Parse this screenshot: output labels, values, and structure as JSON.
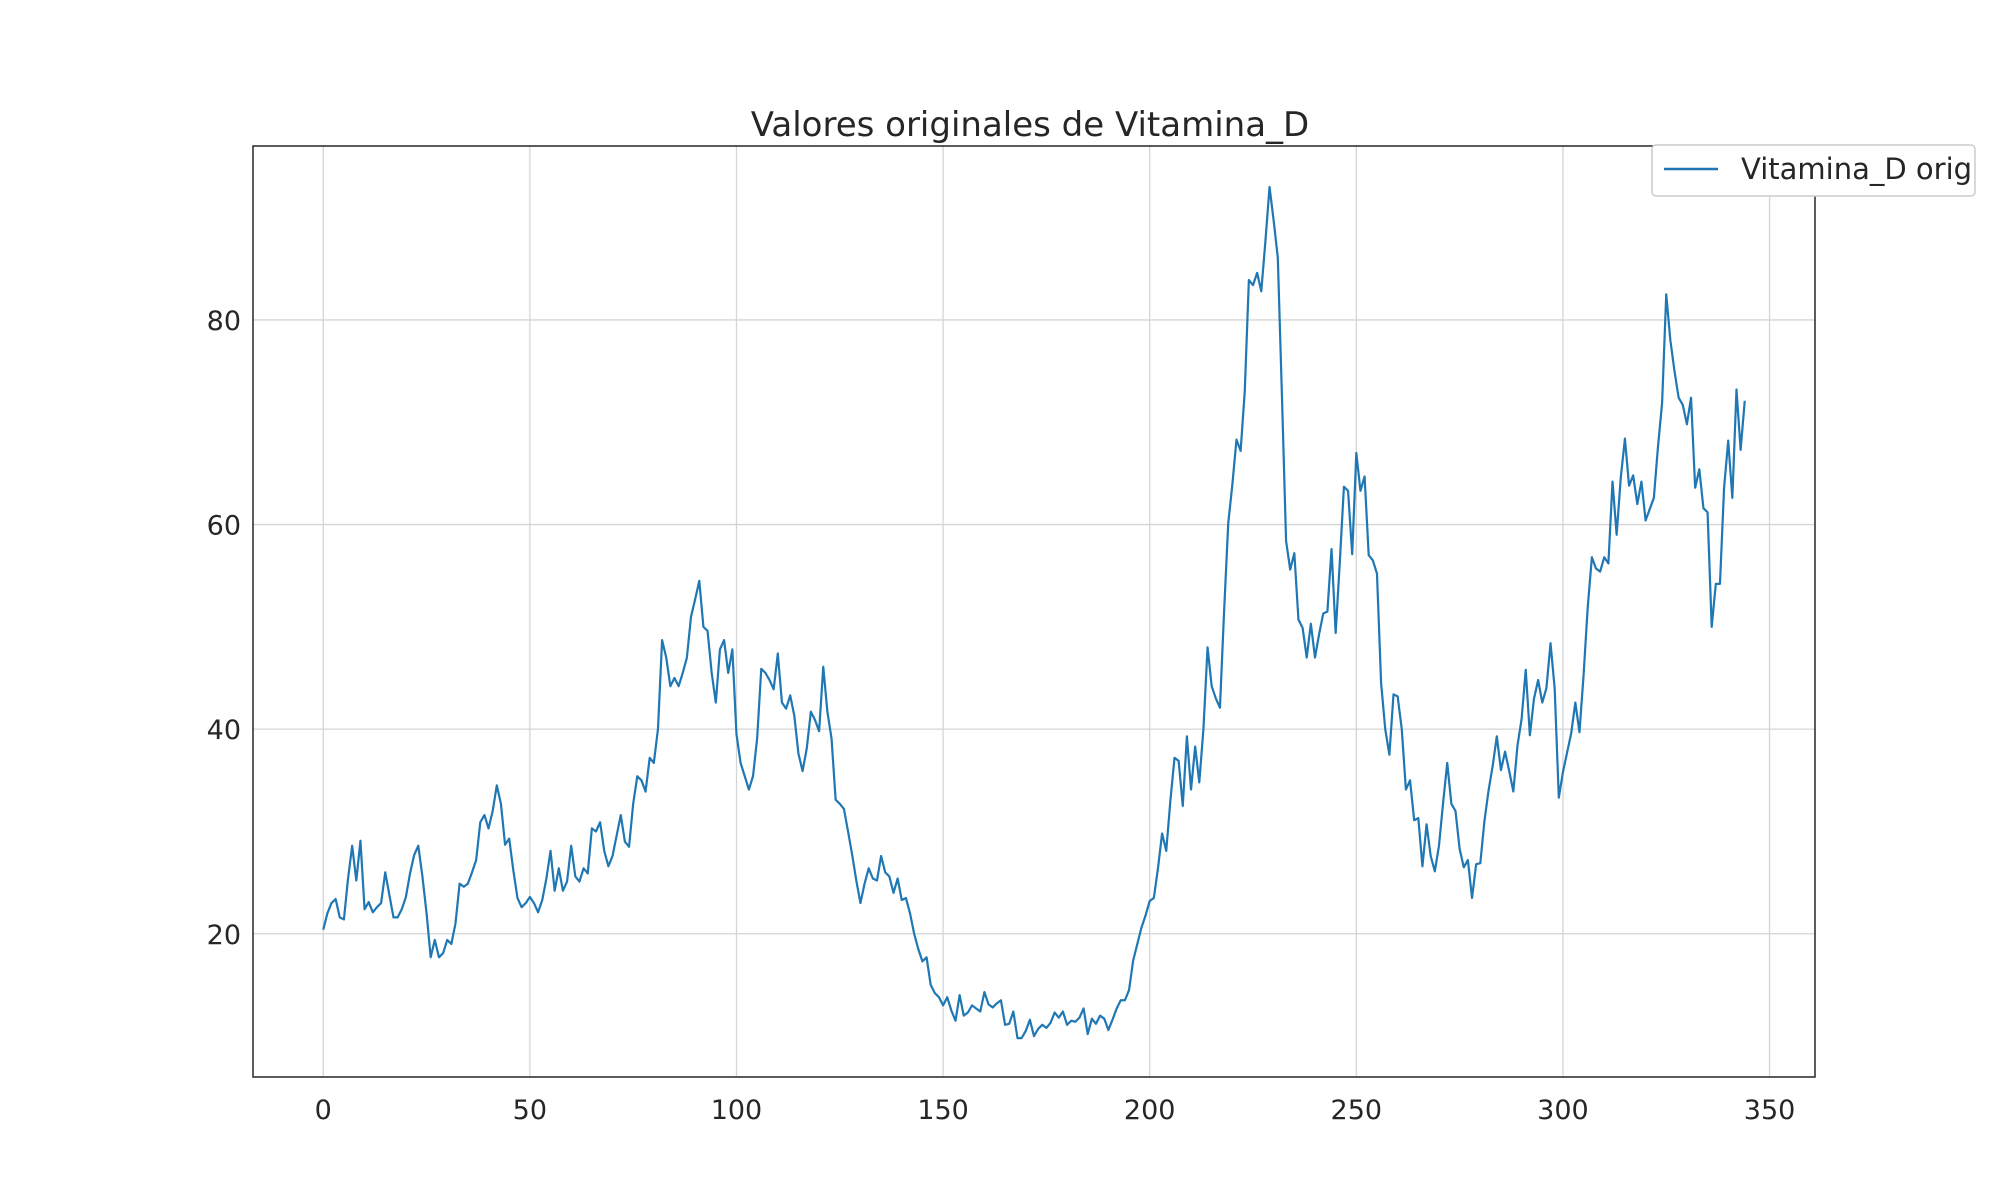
{
  "chart_data": {
    "type": "line",
    "title": "Valores originales de Vitamina_D",
    "xlabel": "",
    "ylabel": "",
    "xlim": [
      -17,
      361
    ],
    "ylim": [
      6,
      97
    ],
    "x_ticks": [
      0,
      50,
      100,
      150,
      200,
      250,
      300,
      350
    ],
    "y_ticks": [
      20,
      40,
      60,
      80
    ],
    "grid": true,
    "legend_position": "upper-right",
    "colors": {
      "series": "#1f77b4",
      "grid": "#d5d5d5",
      "axes": "#262626"
    },
    "series": [
      {
        "name": "Vitamina_D orig",
        "x_start": 0,
        "x_step": 1,
        "values": [
          20.4,
          22.0,
          23.0,
          23.4,
          21.6,
          21.4,
          25.4,
          28.6,
          25.2,
          29.1,
          22.4,
          23.1,
          22.1,
          22.6,
          23.0,
          26.0,
          23.8,
          21.6,
          21.6,
          22.4,
          23.6,
          25.9,
          27.7,
          28.6,
          25.6,
          22.0,
          17.7,
          19.4,
          17.7,
          18.1,
          19.4,
          19.0,
          21.0,
          24.9,
          24.6,
          24.9,
          26.0,
          27.2,
          30.9,
          31.6,
          30.3,
          32.0,
          34.5,
          32.7,
          28.7,
          29.3,
          26.2,
          23.5,
          22.6,
          23.0,
          23.6,
          23.0,
          22.1,
          23.3,
          25.4,
          28.1,
          24.2,
          26.4,
          24.2,
          25.1,
          28.6,
          25.6,
          25.1,
          26.4,
          25.9,
          30.3,
          30.0,
          30.9,
          28.1,
          26.6,
          27.6,
          29.6,
          31.6,
          29.0,
          28.5,
          32.7,
          35.4,
          35.0,
          33.9,
          37.2,
          36.7,
          40.0,
          48.7,
          47.0,
          44.2,
          45.0,
          44.2,
          45.5,
          47.0,
          51.0,
          52.7,
          54.5,
          50.0,
          49.6,
          45.5,
          42.6,
          47.8,
          48.7,
          45.5,
          47.8,
          39.5,
          36.7,
          35.4,
          34.1,
          35.4,
          39.1,
          45.9,
          45.5,
          44.8,
          43.9,
          47.4,
          42.6,
          42.0,
          43.3,
          41.3,
          37.6,
          35.9,
          38.1,
          41.7,
          40.9,
          39.8,
          46.1,
          41.7,
          39.1,
          33.1,
          32.7,
          32.2,
          30.0,
          27.7,
          25.2,
          23.0,
          24.9,
          26.4,
          25.4,
          25.2,
          27.6,
          26.0,
          25.6,
          24.0,
          25.4,
          23.3,
          23.5,
          22.0,
          20.0,
          18.5,
          17.3,
          17.7,
          15.0,
          14.2,
          13.8,
          13.0,
          13.8,
          12.5,
          11.5,
          14.0,
          12.0,
          12.3,
          13.0,
          12.7,
          12.4,
          14.3,
          13.1,
          12.8,
          13.2,
          13.5,
          11.1,
          11.2,
          12.4,
          9.8,
          9.8,
          10.5,
          11.6,
          10.0,
          10.7,
          11.1,
          10.8,
          11.3,
          12.3,
          11.8,
          12.4,
          11.1,
          11.5,
          11.4,
          11.8,
          12.7,
          10.2,
          11.7,
          11.2,
          12.0,
          11.7,
          10.6,
          11.6,
          12.7,
          13.5,
          13.5,
          14.5,
          17.4,
          19.0,
          20.6,
          21.8,
          23.2,
          23.5,
          26.4,
          29.8,
          28.1,
          33.0,
          37.2,
          36.9,
          32.5,
          39.3,
          34.1,
          38.3,
          34.8,
          40.0,
          48.0,
          44.2,
          43.0,
          42.1,
          51.5,
          60.1,
          63.9,
          68.3,
          67.2,
          73.0,
          83.9,
          83.4,
          84.6,
          82.8,
          87.7,
          93.0,
          89.7,
          86.1,
          72.6,
          58.4,
          55.6,
          57.2,
          50.7,
          49.9,
          47.0,
          50.3,
          47.0,
          49.3,
          51.3,
          51.5,
          57.6,
          49.4,
          56.3,
          63.7,
          63.3,
          57.1,
          67.0,
          63.3,
          64.7,
          57.0,
          56.5,
          55.2,
          44.5,
          40.0,
          37.5,
          43.4,
          43.2,
          40.0,
          34.1,
          35.0,
          31.1,
          31.3,
          26.6,
          30.7,
          27.6,
          26.1,
          28.6,
          32.8,
          36.7,
          32.7,
          32.0,
          28.3,
          26.5,
          27.2,
          23.5,
          26.8,
          26.9,
          31.0,
          34.0,
          36.4,
          39.3,
          36.0,
          37.8,
          35.9,
          33.9,
          38.4,
          41.0,
          45.8,
          39.4,
          43.0,
          44.8,
          42.6,
          44.0,
          48.4,
          44.0,
          33.3,
          35.8,
          37.7,
          39.6,
          42.6,
          39.7,
          45.3,
          51.9,
          56.8,
          55.7,
          55.4,
          56.8,
          56.2,
          64.2,
          59.0,
          64.6,
          68.4,
          63.8,
          64.8,
          62.0,
          64.2,
          60.4,
          61.5,
          62.6,
          67.6,
          71.9,
          82.5,
          78.0,
          75.0,
          72.4,
          71.7,
          69.8,
          72.4,
          63.6,
          65.4,
          61.6,
          61.2,
          50.0,
          54.2,
          54.2,
          63.6,
          68.2,
          62.6,
          73.2,
          67.3,
          72.1
        ]
      }
    ]
  }
}
